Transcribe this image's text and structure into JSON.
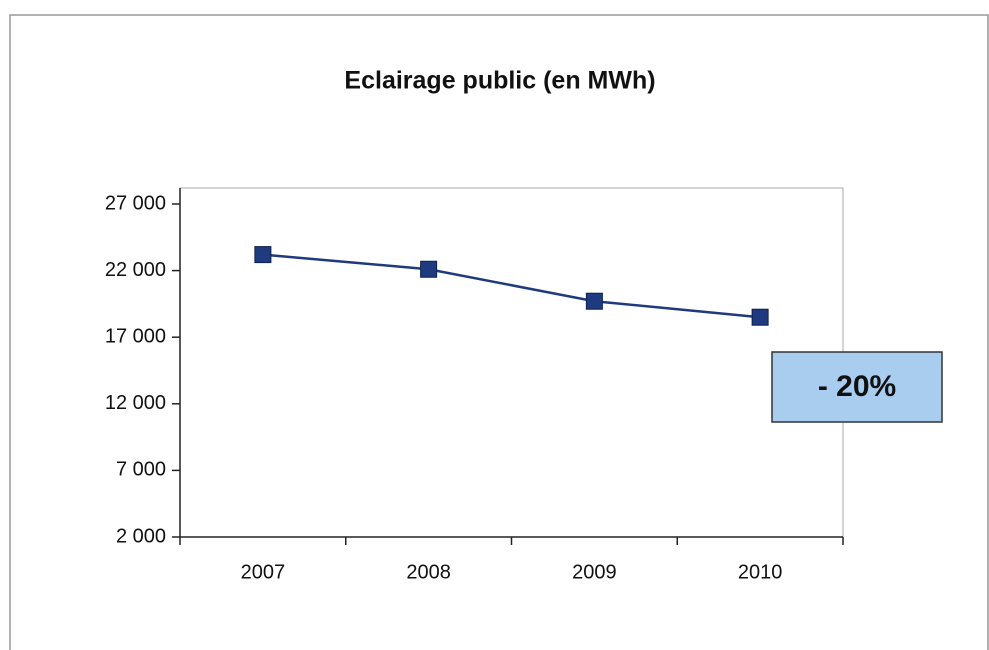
{
  "chart_data": {
    "type": "line",
    "title": "Eclairage public (en MWh)",
    "categories": [
      "2007",
      "2008",
      "2009",
      "2010"
    ],
    "series": [
      {
        "name": "Eclairage public",
        "color": "#1f3a7e",
        "values": [
          23200,
          22100,
          19700,
          18500
        ]
      }
    ],
    "ylim": [
      2000,
      28200
    ],
    "yticks": [
      {
        "value": 2000,
        "label": "2 000"
      },
      {
        "value": 7000,
        "label": "7 000"
      },
      {
        "value": 12000,
        "label": "12 000"
      },
      {
        "value": 17000,
        "label": "17 000"
      },
      {
        "value": 22000,
        "label": "22 000"
      },
      {
        "value": 27000,
        "label": "27 000"
      }
    ],
    "annotation": "- 20%"
  }
}
